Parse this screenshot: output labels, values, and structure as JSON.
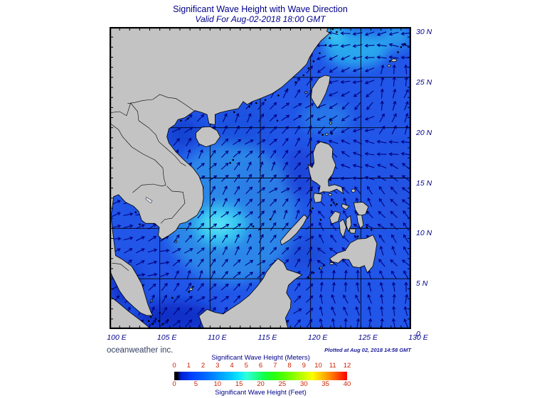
{
  "page": {
    "title": "Significant Wave Height with Wave Direction",
    "subtitle": "Valid For Aug-02-2018 18:00 GMT",
    "credit": "oceanweather inc.",
    "plotted_at": "Plotted at Aug 02, 2018 14:58 GMT"
  },
  "colors": {
    "text_navy": "#00008b",
    "scale_number_red": "#cc2200",
    "credit_color": "#333f63",
    "land_gray": "#c3c3c3",
    "sea_base": "#2156e8",
    "arrow_navy": "#000080",
    "grid_black": "#000000"
  },
  "axes": {
    "lat_labels": [
      "30 N",
      "25 N",
      "20 N",
      "15 N",
      "10 N",
      "5 N",
      "0"
    ],
    "lat_values": [
      30,
      25,
      20,
      15,
      10,
      5,
      0
    ],
    "lon_labels": [
      "100 E",
      "105 E",
      "110 E",
      "115 E",
      "120 E",
      "125 E",
      "130 E"
    ],
    "lon_values": [
      100,
      105,
      110,
      115,
      120,
      125,
      130
    ],
    "grid_step_deg": 5,
    "tick_step_deg": 1
  },
  "colorbar": {
    "title_meters": "Significant Wave Height (Meters)",
    "title_feet": "Significant Wave Height (Feet)",
    "meters_ticks": [
      0,
      1,
      2,
      3,
      4,
      5,
      6,
      7,
      8,
      9,
      10,
      11,
      12
    ],
    "feet_ticks": [
      0,
      5,
      10,
      15,
      20,
      25,
      30,
      35,
      40
    ],
    "gradient": [
      [
        "0%",
        "#000000"
      ],
      [
        "1.5%",
        "#000000"
      ],
      [
        "4%",
        "#0020d0"
      ],
      [
        "10%",
        "#0040ff"
      ],
      [
        "18%",
        "#0068ff"
      ],
      [
        "26%",
        "#009aff"
      ],
      [
        "33%",
        "#00c8ff"
      ],
      [
        "38%",
        "#10eaf8"
      ],
      [
        "42%",
        "#30ffd8"
      ],
      [
        "47%",
        "#20ff96"
      ],
      [
        "52%",
        "#10ff48"
      ],
      [
        "58%",
        "#28ff10"
      ],
      [
        "64%",
        "#58ff00"
      ],
      [
        "70%",
        "#96ff00"
      ],
      [
        "76%",
        "#d2ff00"
      ],
      [
        "80%",
        "#fdfd00"
      ],
      [
        "85%",
        "#ffc400"
      ],
      [
        "90%",
        "#ff8a00"
      ],
      [
        "95%",
        "#ff4400"
      ],
      [
        "100%",
        "#fb0000"
      ]
    ]
  },
  "chart_data": {
    "type": "heatmap",
    "title": "Significant Wave Height with Wave Direction",
    "valid_time": "Aug-02-2018 18:00 GMT",
    "plotted_time": "Aug 02, 2018 14:58 GMT",
    "lon_range_deg_e": [
      100,
      130
    ],
    "lat_range_deg_n": [
      0,
      30
    ],
    "height_scale_m": [
      0,
      12
    ],
    "height_scale_ft": [
      0,
      40
    ],
    "wave_height_features_m": [
      {
        "area": "central South China Sea off southern Vietnam (109-113E, 8-12N)",
        "height_m": 3.0,
        "direction": "toward NE"
      },
      {
        "area": "open South China Sea",
        "height_m": 2.0,
        "direction": "toward NE"
      },
      {
        "area": "Gulf of Thailand",
        "height_m": 1.5,
        "direction": "toward E-NE"
      },
      {
        "area": "East China Sea NE of Taiwan",
        "height_m": 2.5,
        "direction": "toward W"
      },
      {
        "area": "Philippine Sea east of Luzon",
        "height_m": 2.0,
        "direction": "toward W-NW"
      },
      {
        "area": "coastal margins, Gulf of Tonkin, Java Sea, Malacca Strait",
        "height_m": 1.0,
        "direction": "variable"
      }
    ],
    "direction_field": [
      [
        100,
        105.8,
        5,
        13.8,
        70
      ],
      [
        100,
        121,
        0,
        22,
        40
      ],
      [
        105,
        121,
        22,
        30,
        45
      ],
      [
        121,
        130,
        0,
        6,
        350
      ],
      [
        121,
        130,
        6,
        14,
        320
      ],
      [
        121,
        130,
        14,
        19,
        290
      ],
      [
        121,
        126,
        19,
        26,
        240
      ],
      [
        126,
        130,
        19,
        26,
        15
      ],
      [
        121,
        130,
        26,
        30,
        265
      ]
    ],
    "default_bearing": 40,
    "height_patches": [
      [
        112,
        11.5,
        6.5,
        7,
        "#2e8ce8",
        0.9
      ],
      [
        111,
        10.3,
        2.6,
        2,
        "#35c8f0",
        0.95
      ],
      [
        110.8,
        10.4,
        1.3,
        0.9,
        "#58e6f8",
        0.9
      ],
      [
        115.5,
        14,
        3,
        3,
        "#2a7ae6",
        0.7
      ],
      [
        121.5,
        21,
        2.5,
        1.5,
        "#2a84e8",
        0.7
      ],
      [
        124.5,
        27.8,
        3.2,
        1.8,
        "#2cb4ee",
        0.85
      ],
      [
        122.3,
        29.3,
        1.2,
        0.8,
        "#40d8f4",
        0.9
      ],
      [
        128.5,
        29,
        1.5,
        1.2,
        "#30b8f0",
        0.7
      ],
      [
        107.3,
        19.5,
        1.8,
        1.5,
        "#1440cc",
        0.8
      ],
      [
        106.5,
        1.2,
        4,
        1.6,
        "#0d2ec4",
        0.9
      ],
      [
        104.5,
        13,
        2.2,
        1.5,
        "#1546d2",
        0.6
      ],
      [
        101.5,
        4.3,
        1.5,
        2,
        "#0d2ec4",
        0.85
      ],
      [
        119,
        15.5,
        1.8,
        2.5,
        "#1b3fd4",
        0.7
      ],
      [
        119.5,
        7.5,
        2,
        1.5,
        "#1240cc",
        0.5
      ],
      [
        113,
        20,
        3,
        2,
        "#1c50d8",
        0.5
      ],
      [
        129,
        14,
        2,
        4,
        "#2050dd",
        0.45
      ]
    ]
  }
}
